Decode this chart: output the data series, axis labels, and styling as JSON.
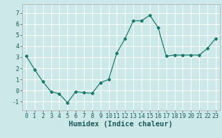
{
  "x": [
    0,
    1,
    2,
    3,
    4,
    5,
    6,
    7,
    8,
    9,
    10,
    11,
    12,
    13,
    14,
    15,
    16,
    17,
    18,
    19,
    20,
    21,
    22,
    23
  ],
  "y": [
    3.1,
    1.9,
    0.8,
    -0.1,
    -0.3,
    -1.1,
    -0.1,
    -0.2,
    -0.25,
    0.7,
    1.0,
    3.4,
    4.7,
    6.3,
    6.3,
    6.8,
    5.7,
    3.1,
    3.2,
    3.2,
    3.2,
    3.2,
    3.8,
    4.7
  ],
  "line_color": "#1a7a6a",
  "marker": "D",
  "marker_size": 2.0,
  "bg_color": "#cde8e8",
  "grid_color": "#ffffff",
  "xlabel": "Humidex (Indice chaleur)",
  "ylim": [
    -1.8,
    7.8
  ],
  "xlim": [
    -0.5,
    23.5
  ],
  "yticks": [
    -1,
    0,
    1,
    2,
    3,
    4,
    5,
    6,
    7
  ],
  "xticks": [
    0,
    1,
    2,
    3,
    4,
    5,
    6,
    7,
    8,
    9,
    10,
    11,
    12,
    13,
    14,
    15,
    16,
    17,
    18,
    19,
    20,
    21,
    22,
    23
  ],
  "tick_fontsize": 6.0,
  "xlabel_fontsize": 7.5
}
